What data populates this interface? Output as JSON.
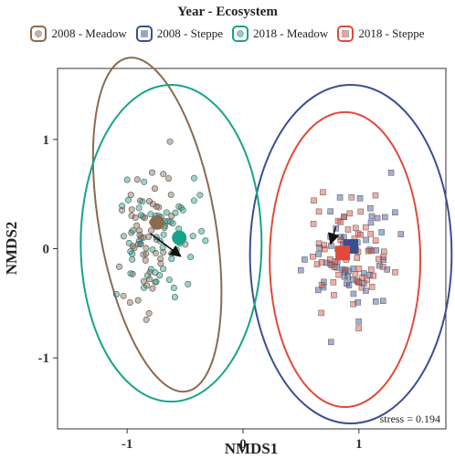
{
  "legend": {
    "title": "Year - Ecosystem",
    "items": [
      {
        "label": "2008 - Meadow",
        "color": "#8B6A4E",
        "shape": "circle"
      },
      {
        "label": "2008 - Steppe",
        "color": "#3A4E92",
        "shape": "square"
      },
      {
        "label": "2018 - Meadow",
        "color": "#17A38A",
        "shape": "circle"
      },
      {
        "label": "2018 - Steppe",
        "color": "#E04A3A",
        "shape": "square"
      }
    ]
  },
  "chart_data": {
    "type": "scatter",
    "title": "",
    "xlabel": "NMDS1",
    "ylabel": "NMDS2",
    "xlim": [
      -1.6,
      1.75
    ],
    "ylim": [
      -1.65,
      1.65
    ],
    "x_ticks": [
      -1,
      0,
      1
    ],
    "y_ticks": [
      -1,
      0,
      1
    ],
    "grid": false,
    "legend_position": "top",
    "annotation": "stress = 0.194",
    "series": [
      {
        "name": "2008 - Meadow",
        "color": "#8B6A4E",
        "shape": "circle",
        "centroid": [
          -0.74,
          0.24
        ],
        "ellipse": {
          "center": [
            -0.74,
            0.22
          ],
          "rx": 0.5,
          "ry": 1.55,
          "angle_deg": 10
        },
        "cloud": {
          "center": [
            -0.8,
            0.2
          ],
          "sx": 0.22,
          "sy": 0.55
        }
      },
      {
        "name": "2008 - Steppe",
        "color": "#3A4E92",
        "shape": "square",
        "centroid": [
          0.93,
          0.02
        ],
        "ellipse": {
          "center": [
            0.93,
            -0.05
          ],
          "rx": 0.87,
          "ry": 1.55,
          "angle_deg": 0
        },
        "cloud": {
          "center": [
            0.95,
            0.0
          ],
          "sx": 0.32,
          "sy": 0.5
        }
      },
      {
        "name": "2018 - Meadow",
        "color": "#17A38A",
        "shape": "circle",
        "centroid": [
          -0.55,
          0.1
        ],
        "ellipse": {
          "center": [
            -0.62,
            0.05
          ],
          "rx": 0.78,
          "ry": 1.45,
          "angle_deg": 0
        },
        "cloud": {
          "center": [
            -0.7,
            0.1
          ],
          "sx": 0.28,
          "sy": 0.55
        }
      },
      {
        "name": "2018 - Steppe",
        "color": "#E04A3A",
        "shape": "square",
        "centroid": [
          0.86,
          -0.04
        ],
        "ellipse": {
          "center": [
            0.88,
            -0.1
          ],
          "rx": 0.65,
          "ry": 1.35,
          "angle_deg": 0
        },
        "cloud": {
          "center": [
            0.9,
            0.0
          ],
          "sx": 0.3,
          "sy": 0.45
        }
      }
    ],
    "arrows": [
      {
        "from": [
          -0.8,
          0.14
        ],
        "to": [
          -0.55,
          -0.06
        ]
      },
      {
        "from": [
          0.8,
          0.2
        ],
        "to": [
          0.76,
          0.06
        ],
        "series_from": "2008 - Steppe"
      }
    ]
  }
}
